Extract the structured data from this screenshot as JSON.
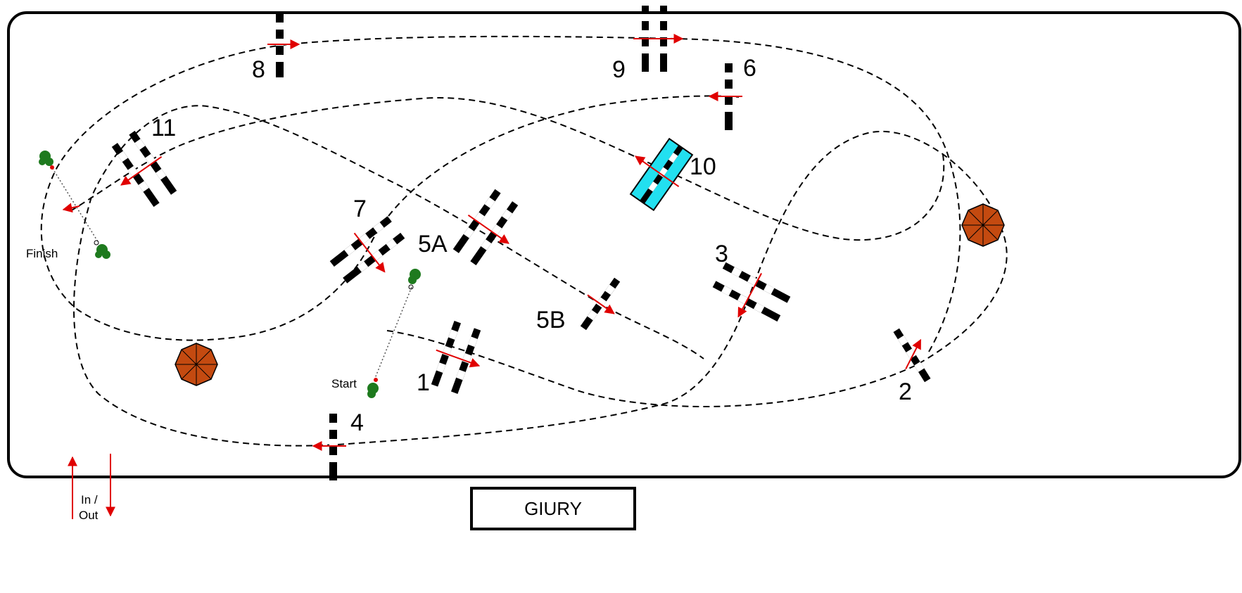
{
  "arena": {
    "judge_label": "GIURY",
    "start_label": "Start",
    "finish_label": "Finish",
    "entry_label_line1": "In /",
    "entry_label_line2": "Out"
  },
  "obstacles": [
    {
      "id": "1",
      "label": "1"
    },
    {
      "id": "2",
      "label": "2"
    },
    {
      "id": "3",
      "label": "3"
    },
    {
      "id": "4",
      "label": "4"
    },
    {
      "id": "5A",
      "label": "5A"
    },
    {
      "id": "5B",
      "label": "5B"
    },
    {
      "id": "6",
      "label": "6"
    },
    {
      "id": "7",
      "label": "7"
    },
    {
      "id": "8",
      "label": "8"
    },
    {
      "id": "9",
      "label": "9"
    },
    {
      "id": "10",
      "label": "10"
    },
    {
      "id": "11",
      "label": "11"
    }
  ],
  "colors": {
    "border": "#000000",
    "pole_dark": "#000000",
    "pole_light": "#ffffff",
    "arrow": "#e00000",
    "water": "#22e0f0",
    "tree": "#1e7a1e",
    "umbrella": "#c44a10"
  }
}
